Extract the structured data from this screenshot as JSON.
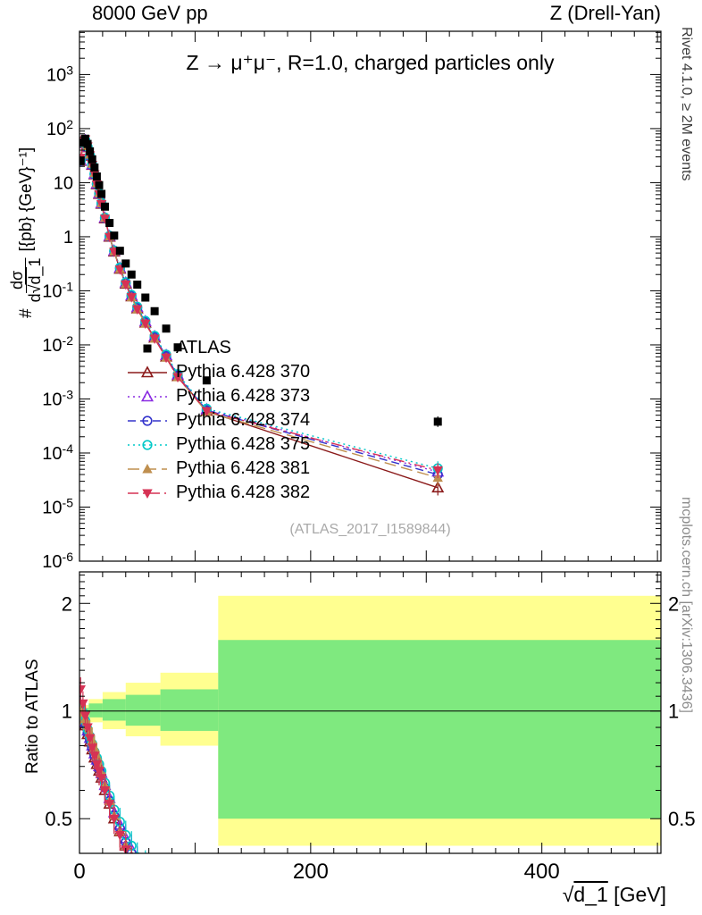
{
  "header": {
    "left": "8000 GeV pp",
    "right": "Z (Drell-Yan)"
  },
  "watermark": "(ATLAS_2017_I1589844)",
  "side_notes": {
    "top": "Rivet 4.1.0, ≥ 2M events",
    "bottom": "mcplots.cern.ch [arXiv:1306.3436]"
  },
  "axes": {
    "main_ylabel": {
      "prefix": "#",
      "numerator": "dσ",
      "denominator_pre": "d√",
      "denominator_root": "d_1",
      "units": "[{pb} {GeV}⁻¹]"
    },
    "xlabel": {
      "root_sign": "√",
      "root_content": "d_1",
      "units": " [GeV]"
    }
  },
  "chart_data": {
    "type": "line",
    "title": "Z → μ⁺μ⁻, R=1.0, charged particles only",
    "xlabel": "sqrt(d_1) [GeV]",
    "xlim": [
      0,
      503
    ],
    "xticks": [
      0,
      200,
      400
    ],
    "x_minor_step": 20,
    "main_panel": {
      "yscale": "log",
      "ylim": [
        1e-06,
        6310
      ],
      "ylabel": "# dsigma/d sqrt(d_1) [{pb} {GeV}^-1]",
      "ytick_exponents": [
        -6,
        -5,
        -4,
        -3,
        -2,
        -1,
        0,
        1,
        2,
        3
      ]
    },
    "ratio_panel": {
      "yscale": "log",
      "ylim": [
        0.4,
        2.45
      ],
      "yticks": [
        0.5,
        1,
        2
      ],
      "label": "Ratio to ATLAS"
    },
    "x": [
      1,
      3,
      5,
      7,
      9,
      11,
      13,
      15,
      17,
      19,
      22,
      26,
      30,
      35,
      40,
      45,
      50,
      57,
      65,
      75,
      85,
      110,
      310
    ],
    "reference": {
      "name": "ATLAS",
      "color": "#000000",
      "marker": "filled-square",
      "y": [
        25,
        55,
        65,
        52,
        38,
        27,
        19,
        13,
        9,
        6.2,
        3.6,
        1.8,
        1.05,
        0.55,
        0.32,
        0.2,
        0.13,
        0.075,
        0.042,
        0.02,
        0.009,
        0.0022,
        0.00038
      ]
    },
    "series": [
      {
        "name": "Pythia 6.428 370",
        "color": "#8b1a1a",
        "marker": "open-triangle-up",
        "line": "solid",
        "ratio": [
          1.0,
          0.96,
          0.91,
          0.86,
          0.82,
          0.78,
          0.74,
          0.71,
          0.68,
          0.65,
          0.6,
          0.55,
          0.5,
          0.46,
          0.42,
          0.39,
          0.36,
          0.34,
          0.32,
          0.3,
          0.29,
          0.27,
          0.06
        ]
      },
      {
        "name": "Pythia 6.428 373",
        "color": "#8a2be2",
        "marker": "open-triangle-up",
        "line": "dotted",
        "ratio": [
          1.02,
          0.98,
          0.93,
          0.88,
          0.84,
          0.8,
          0.76,
          0.73,
          0.7,
          0.67,
          0.62,
          0.57,
          0.52,
          0.48,
          0.44,
          0.41,
          0.38,
          0.36,
          0.34,
          0.32,
          0.31,
          0.29,
          0.118
        ]
      },
      {
        "name": "Pythia 6.428 374",
        "color": "#3333cc",
        "marker": "open-circle",
        "line": "dashed",
        "ratio": [
          1.01,
          0.97,
          0.92,
          0.87,
          0.83,
          0.79,
          0.75,
          0.72,
          0.69,
          0.66,
          0.61,
          0.56,
          0.51,
          0.47,
          0.43,
          0.4,
          0.37,
          0.35,
          0.33,
          0.31,
          0.3,
          0.28,
          0.105
        ]
      },
      {
        "name": "Pythia 6.428 375",
        "color": "#00c8c8",
        "marker": "open-circle",
        "line": "dotted",
        "ratio": [
          1.03,
          0.99,
          0.94,
          0.89,
          0.85,
          0.81,
          0.77,
          0.74,
          0.71,
          0.68,
          0.63,
          0.58,
          0.53,
          0.49,
          0.45,
          0.42,
          0.39,
          0.37,
          0.35,
          0.33,
          0.32,
          0.3,
          0.137
        ]
      },
      {
        "name": "Pythia 6.428 381",
        "color": "#bf8f4f",
        "marker": "filled-triangle-up",
        "line": "long-dash",
        "ratio": [
          1.0,
          0.99,
          0.95,
          0.91,
          0.87,
          0.83,
          0.79,
          0.75,
          0.71,
          0.67,
          0.62,
          0.56,
          0.51,
          0.46,
          0.42,
          0.38,
          0.35,
          0.33,
          0.31,
          0.29,
          0.28,
          0.26,
          0.092
        ]
      },
      {
        "name": "Pythia 6.428 382",
        "color": "#d63254",
        "marker": "filled-triangle-down",
        "line": "dash-dot",
        "ratio": [
          1.15,
          1.05,
          0.97,
          0.9,
          0.84,
          0.79,
          0.75,
          0.71,
          0.68,
          0.65,
          0.6,
          0.55,
          0.5,
          0.45,
          0.41,
          0.38,
          0.35,
          0.33,
          0.31,
          0.29,
          0.28,
          0.27,
          0.126
        ]
      }
    ],
    "bands": {
      "yellow": {
        "color": "#ffff90",
        "segments": [
          [
            0,
            8,
            0.96,
            1.04
          ],
          [
            8,
            20,
            0.93,
            1.08
          ],
          [
            20,
            40,
            0.89,
            1.13
          ],
          [
            40,
            70,
            0.85,
            1.2
          ],
          [
            70,
            120,
            0.8,
            1.28
          ],
          [
            120,
            503,
            0.42,
            2.1
          ]
        ]
      },
      "green": {
        "color": "#7fe97f",
        "segments": [
          [
            0,
            8,
            0.98,
            1.02
          ],
          [
            8,
            20,
            0.96,
            1.05
          ],
          [
            20,
            40,
            0.94,
            1.08
          ],
          [
            40,
            70,
            0.91,
            1.11
          ],
          [
            70,
            120,
            0.88,
            1.15
          ],
          [
            120,
            503,
            0.5,
            1.58
          ]
        ]
      }
    }
  }
}
